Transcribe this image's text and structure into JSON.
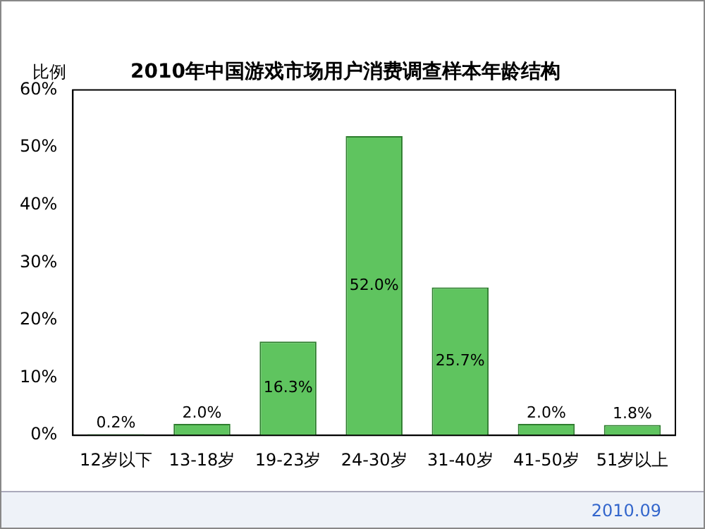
{
  "chart_data": {
    "type": "bar",
    "title": "2010年中国游戏市场用户消费调查样本年龄结构",
    "ylabel": "比例",
    "categories": [
      "12岁以下",
      "13-18岁",
      "19-23岁",
      "24-30岁",
      "31-40岁",
      "41-50岁",
      "51岁以上"
    ],
    "values": [
      0.2,
      2.0,
      16.3,
      52.0,
      25.7,
      2.0,
      1.8
    ],
    "value_labels": [
      "0.2%",
      "2.0%",
      "16.3%",
      "52.0%",
      "25.7%",
      "2.0%",
      "1.8%"
    ],
    "color": "#5fc45f",
    "ylim": [
      0,
      60
    ],
    "yticks": [
      {
        "value": 0,
        "label": "0%"
      },
      {
        "value": 10,
        "label": "10%"
      },
      {
        "value": 20,
        "label": "20%"
      },
      {
        "value": 30,
        "label": "30%"
      },
      {
        "value": 40,
        "label": "40%"
      },
      {
        "value": 50,
        "label": "50%"
      },
      {
        "value": 60,
        "label": "60%"
      }
    ],
    "grid": false,
    "legend": false,
    "annotations": [
      "2010.09"
    ]
  }
}
